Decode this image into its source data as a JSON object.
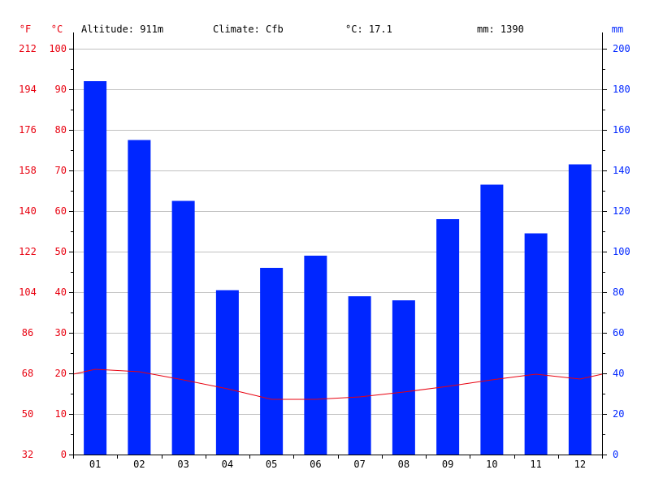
{
  "header": {
    "altitude": "Altitude: 911m",
    "climate": "Climate: Cfb",
    "temp_avg": "°C: 17.1",
    "precip_total": "mm: 1390"
  },
  "axes": {
    "f_unit": "°F",
    "c_unit": "°C",
    "mm_unit": "mm",
    "f_ticks": [
      "32",
      "50",
      "68",
      "86",
      "104",
      "122",
      "140",
      "158",
      "176",
      "194",
      "212"
    ],
    "c_ticks": [
      0,
      10,
      20,
      30,
      40,
      50,
      60,
      70,
      80,
      90,
      100
    ],
    "mm_ticks": [
      0,
      20,
      40,
      60,
      80,
      100,
      120,
      140,
      160,
      180,
      200
    ]
  },
  "colors": {
    "bar": "#0026ff",
    "line": "#e8000f",
    "grid": "#c0c0c0",
    "temp_axis": "#e8000f",
    "precip_axis": "#0026ff"
  },
  "chart_data": {
    "type": "bar",
    "categories": [
      "01",
      "02",
      "03",
      "04",
      "05",
      "06",
      "07",
      "08",
      "09",
      "10",
      "11",
      "12"
    ],
    "series": [
      {
        "type": "bar",
        "unit": "mm",
        "axis": "right",
        "values": [
          184,
          155,
          125,
          81,
          92,
          98,
          78,
          76,
          116,
          133,
          109,
          143
        ]
      },
      {
        "type": "line",
        "unit": "°C",
        "axis": "left",
        "values": [
          21,
          20.4,
          18.4,
          16.2,
          13.6,
          13.6,
          14.2,
          15.4,
          16.8,
          18.4,
          19.8,
          18.6
        ]
      }
    ],
    "line_edges": {
      "start": 19.8,
      "end": 19.8
    },
    "ylim_left": [
      0,
      100
    ],
    "ylim_right": [
      0,
      200
    ],
    "grid": true
  }
}
